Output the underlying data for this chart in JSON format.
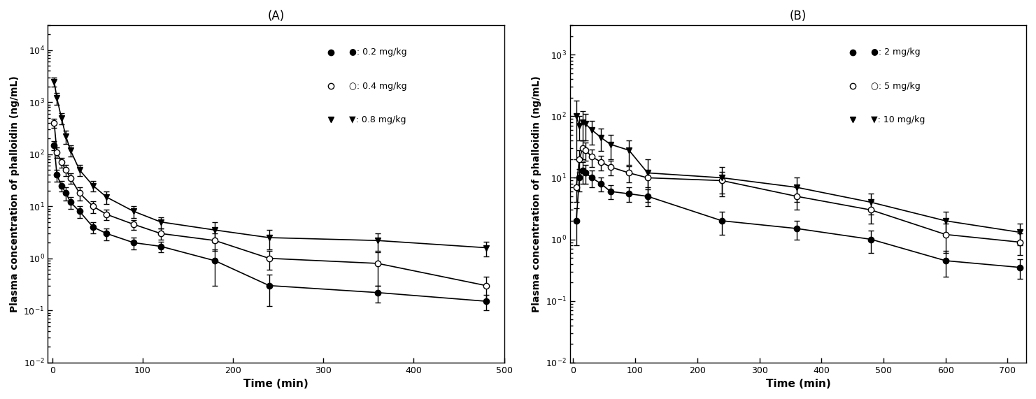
{
  "A": {
    "title": "(A)",
    "xlabel": "Time (min)",
    "ylabel": "Plasma concentration of phalloidin (ng/mL)",
    "ylim": [
      0.01,
      30000
    ],
    "xlim": [
      -5,
      500
    ],
    "xticks": [
      0,
      100,
      200,
      300,
      400,
      500
    ],
    "series": [
      {
        "label": "●: 0.2 mg/kg",
        "marker": "o",
        "fillstyle": "full",
        "color": "black",
        "x": [
          2,
          5,
          10,
          15,
          20,
          30,
          45,
          60,
          90,
          120,
          180,
          240,
          360,
          480
        ],
        "y": [
          150,
          40,
          25,
          18,
          12,
          8,
          4,
          3,
          2,
          1.7,
          0.9,
          0.3,
          0.22,
          0.15
        ],
        "yerr": [
          30,
          10,
          6,
          5,
          3,
          2,
          1,
          0.8,
          0.5,
          0.4,
          0.6,
          0.18,
          0.08,
          0.05
        ]
      },
      {
        "label": "○: 0.4 mg/kg",
        "marker": "o",
        "fillstyle": "none",
        "color": "black",
        "x": [
          2,
          5,
          10,
          15,
          20,
          30,
          45,
          60,
          90,
          120,
          180,
          240,
          360,
          480
        ],
        "y": [
          400,
          110,
          70,
          50,
          35,
          18,
          10,
          7,
          4.5,
          3,
          2.2,
          1.0,
          0.8,
          0.3
        ],
        "yerr": [
          80,
          25,
          15,
          12,
          8,
          5,
          2.5,
          1.5,
          1.0,
          0.7,
          0.8,
          0.4,
          0.5,
          0.15
        ]
      },
      {
        "label": "▼: 0.8 mg/kg",
        "marker": "v",
        "fillstyle": "full",
        "color": "black",
        "x": [
          2,
          5,
          10,
          15,
          20,
          30,
          45,
          60,
          90,
          120,
          180,
          240,
          360,
          480
        ],
        "y": [
          2500,
          1200,
          500,
          220,
          120,
          50,
          25,
          15,
          8,
          5,
          3.5,
          2.5,
          2.2,
          1.6
        ],
        "yerr": [
          500,
          300,
          120,
          60,
          30,
          12,
          6,
          4,
          2,
          1.2,
          1.5,
          1.0,
          0.8,
          0.5
        ]
      }
    ]
  },
  "B": {
    "title": "(B)",
    "xlabel": "Time (min)",
    "ylabel": "Plasma concentration of phalloidin (ng/mL)",
    "ylim": [
      0.01,
      3000
    ],
    "xlim": [
      -5,
      730
    ],
    "xticks": [
      0,
      100,
      200,
      300,
      400,
      500,
      600,
      700
    ],
    "series": [
      {
        "label": "●: 2 mg/kg",
        "marker": "o",
        "fillstyle": "full",
        "color": "black",
        "x": [
          5,
          10,
          15,
          20,
          30,
          45,
          60,
          90,
          120,
          240,
          360,
          480,
          600,
          720
        ],
        "y": [
          2.0,
          10,
          13,
          12,
          10,
          8,
          6,
          5.5,
          5,
          2.0,
          1.5,
          1.0,
          0.45,
          0.35
        ],
        "yerr": [
          1.2,
          4,
          5,
          4,
          3,
          2,
          1.5,
          1.5,
          1.5,
          0.8,
          0.5,
          0.4,
          0.2,
          0.12
        ]
      },
      {
        "label": "○: 5 mg/kg",
        "marker": "o",
        "fillstyle": "none",
        "color": "black",
        "x": [
          5,
          10,
          15,
          20,
          30,
          45,
          60,
          90,
          120,
          240,
          360,
          480,
          600,
          720
        ],
        "y": [
          7,
          20,
          30,
          28,
          22,
          18,
          15,
          12,
          10,
          9,
          5,
          3,
          1.2,
          0.9
        ],
        "yerr": [
          3,
          8,
          10,
          9,
          7,
          5,
          4,
          3.5,
          3,
          3.5,
          2,
          1.2,
          0.6,
          0.35
        ]
      },
      {
        "label": "▼: 10 mg/kg",
        "marker": "v",
        "fillstyle": "full",
        "color": "black",
        "x": [
          5,
          10,
          15,
          20,
          30,
          45,
          60,
          90,
          120,
          240,
          360,
          480,
          600,
          720
        ],
        "y": [
          100,
          70,
          80,
          75,
          60,
          45,
          35,
          28,
          12,
          10,
          7,
          4,
          2.0,
          1.3
        ],
        "yerr": [
          80,
          30,
          40,
          35,
          25,
          18,
          15,
          12,
          8,
          5,
          3,
          1.5,
          0.8,
          0.5
        ]
      }
    ]
  }
}
